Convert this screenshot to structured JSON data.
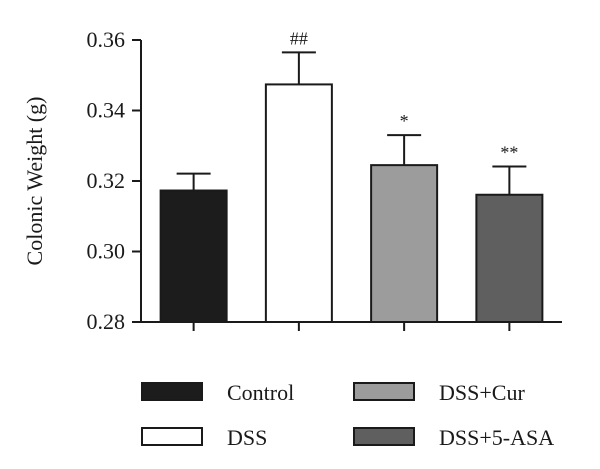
{
  "chart_data": {
    "type": "bar",
    "title": "",
    "xlabel": "",
    "ylabel": "Colonic Weight (g)",
    "ylim": [
      0.28,
      0.36
    ],
    "yticks": [
      "0.28",
      "0.30",
      "0.32",
      "0.34",
      "0.36"
    ],
    "ytick_values": [
      0.28,
      0.3,
      0.32,
      0.34,
      0.36
    ],
    "grid": false,
    "legend_position": "bottom",
    "categories": [
      "Control",
      "DSS",
      "DSS+Cur",
      "DSS+5-ASA"
    ],
    "values": [
      0.3173,
      0.3474,
      0.3245,
      0.3161
    ],
    "errors": [
      0.0048,
      0.0091,
      0.0085,
      0.008
    ],
    "annotations": [
      "",
      "##",
      "*",
      "**"
    ],
    "colors": [
      "#1c1c1c",
      "#ffffff",
      "#9c9c9c",
      "#5f5f5f"
    ]
  }
}
